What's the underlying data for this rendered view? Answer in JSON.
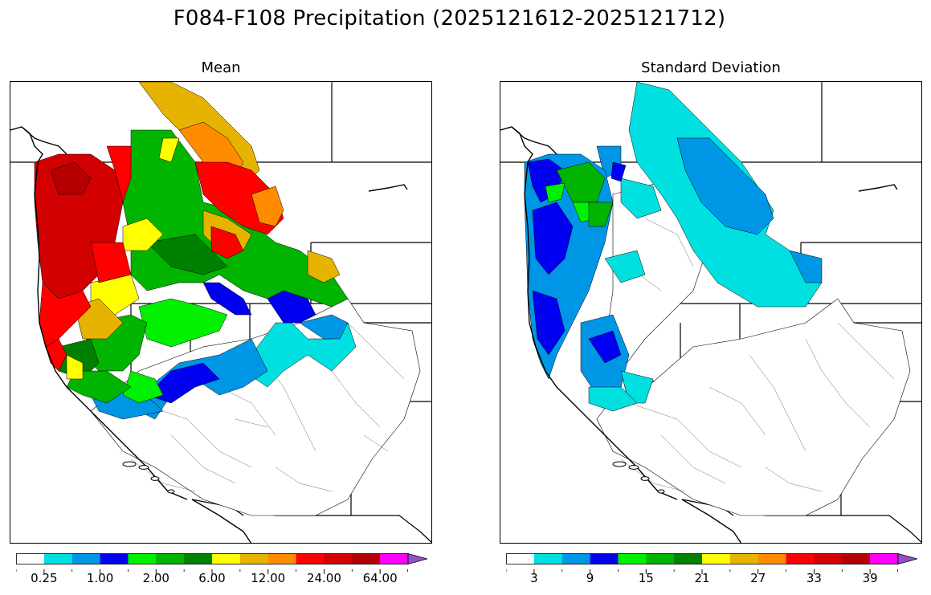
{
  "suptitle": "F084-F108 Precipitation (2025121612-2025121712)",
  "panels": [
    {
      "title": "Mean",
      "colorbar": {
        "colors": [
          "#ffffff",
          "#00e0e0",
          "#0096e6",
          "#0000f0",
          "#00f000",
          "#00b400",
          "#008000",
          "#ffff00",
          "#e6b400",
          "#ff8c00",
          "#ff0000",
          "#d20000",
          "#b40000",
          "#ff00ff",
          "#9650c8"
        ],
        "labels": [
          "0.25",
          "1.00",
          "2.00",
          "6.00",
          "12.00",
          "24.00",
          "64.00"
        ],
        "extend": "max"
      }
    },
    {
      "title": "Standard Deviation",
      "colorbar": {
        "colors": [
          "#ffffff",
          "#00e0e0",
          "#0096e6",
          "#0000f0",
          "#00f000",
          "#00b400",
          "#008000",
          "#ffff00",
          "#e6b400",
          "#ff8c00",
          "#ff0000",
          "#d20000",
          "#b40000",
          "#ff00ff",
          "#9650c8"
        ],
        "labels": [
          "3",
          "9",
          "15",
          "21",
          "27",
          "33",
          "39"
        ],
        "extend": "max"
      }
    }
  ]
}
